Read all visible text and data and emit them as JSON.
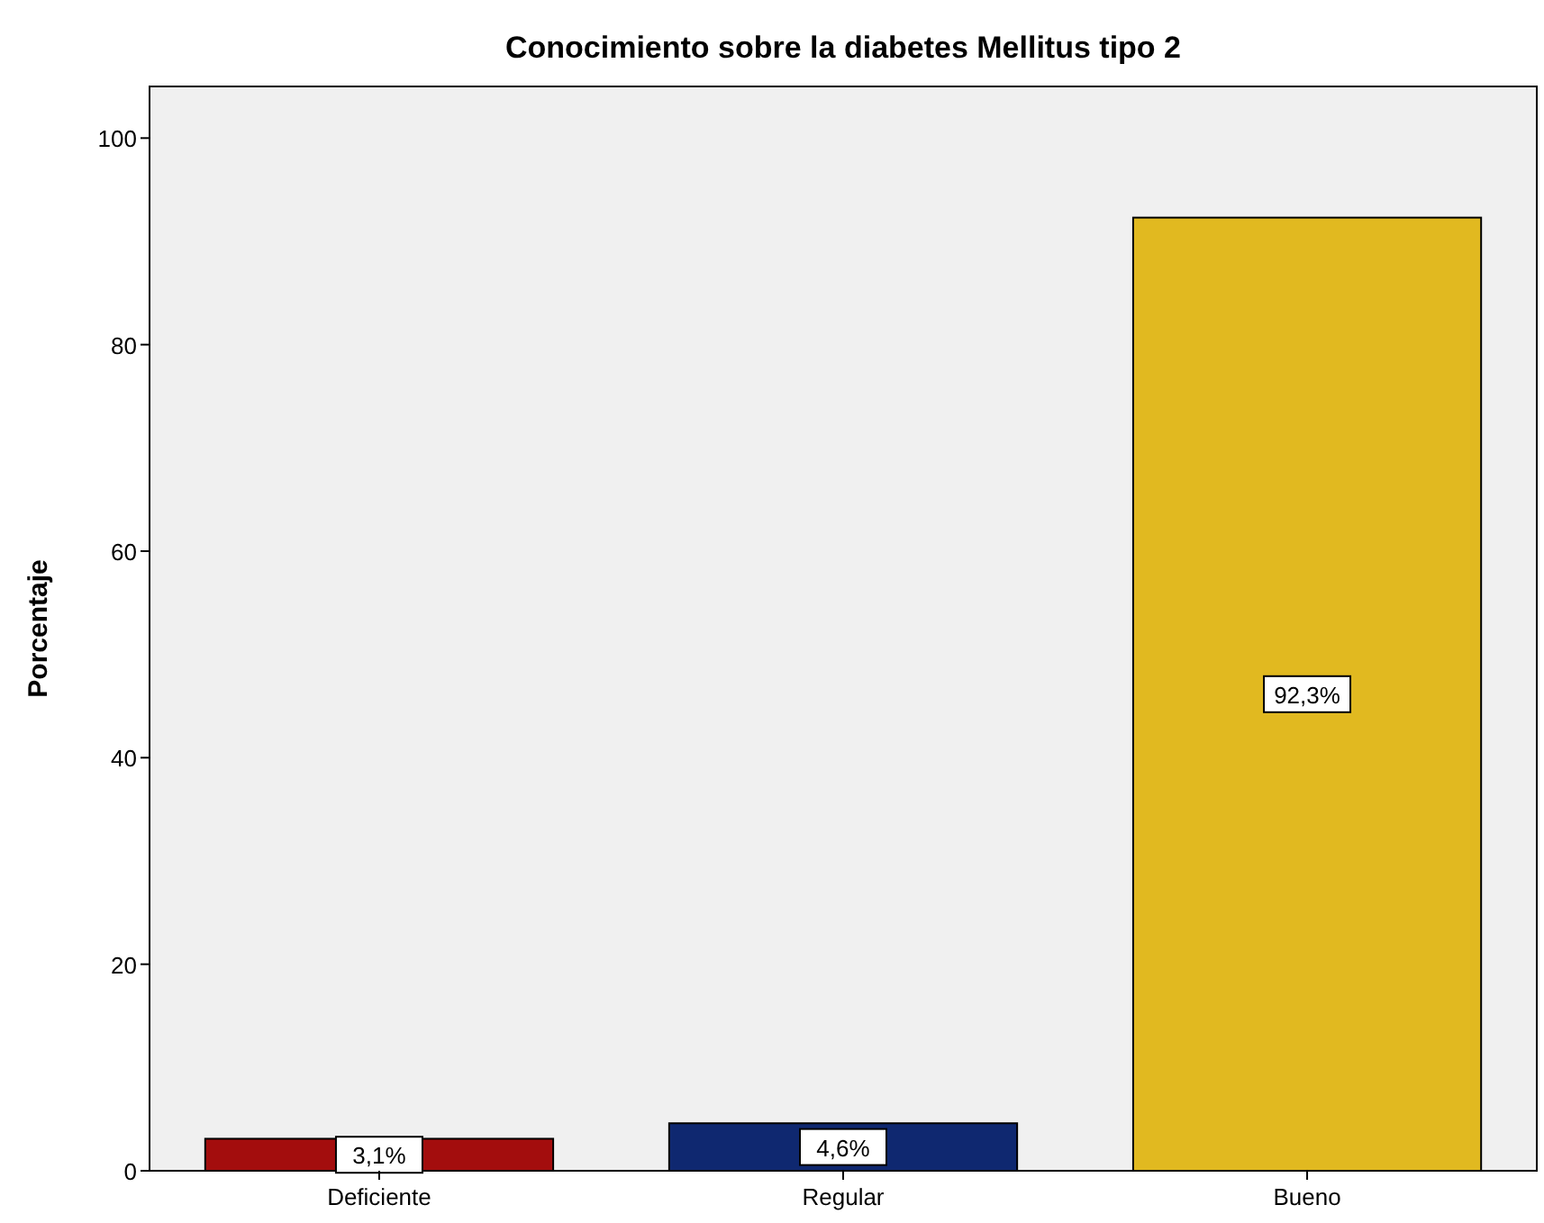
{
  "chart_data": {
    "type": "bar",
    "title": "Conocimiento sobre la diabetes Mellitus tipo 2",
    "ylabel": "Porcentaje",
    "categories": [
      "Deficiente",
      "Regular",
      "Bueno"
    ],
    "values": [
      3.1,
      4.6,
      92.3
    ],
    "colors": [
      "#a30d0d",
      "#0f2870",
      "#e1b920"
    ],
    "value_labels": [
      "3,1%",
      "4,6%",
      "92,3%"
    ],
    "ylim": [
      0,
      105
    ],
    "yticks": [
      0,
      20,
      40,
      60,
      80,
      100
    ],
    "grid": false
  }
}
